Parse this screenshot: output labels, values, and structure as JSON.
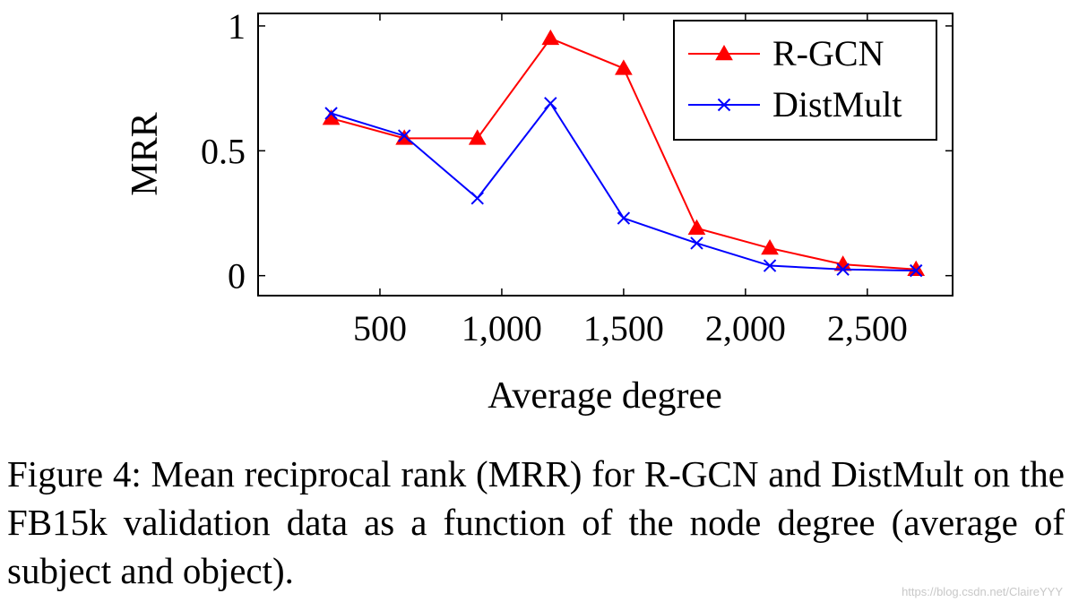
{
  "chart_data": {
    "type": "line",
    "xlabel": "Average degree",
    "ylabel": "MRR",
    "xlim": [
      0,
      2850
    ],
    "ylim": [
      -0.08,
      1.05
    ],
    "x_ticks": [
      {
        "value": 500,
        "label": "500"
      },
      {
        "value": 1000,
        "label": "1,000"
      },
      {
        "value": 1500,
        "label": "1,500"
      },
      {
        "value": 2000,
        "label": "2,000"
      },
      {
        "value": 2500,
        "label": "2,500"
      }
    ],
    "y_ticks": [
      {
        "value": 0,
        "label": "0"
      },
      {
        "value": 0.5,
        "label": "0.5"
      },
      {
        "value": 1,
        "label": "1"
      }
    ],
    "legend_position": "top-right",
    "grid": false,
    "series": [
      {
        "name": "R-GCN",
        "color": "#ff0000",
        "marker": "triangle",
        "points": [
          {
            "x": 300,
            "y": 0.63
          },
          {
            "x": 600,
            "y": 0.55
          },
          {
            "x": 900,
            "y": 0.55
          },
          {
            "x": 1200,
            "y": 0.95
          },
          {
            "x": 1500,
            "y": 0.83
          },
          {
            "x": 1800,
            "y": 0.19
          },
          {
            "x": 2100,
            "y": 0.11
          },
          {
            "x": 2400,
            "y": 0.045
          },
          {
            "x": 2700,
            "y": 0.025
          }
        ]
      },
      {
        "name": "DistMult",
        "color": "#0000ff",
        "marker": "cross",
        "points": [
          {
            "x": 300,
            "y": 0.65
          },
          {
            "x": 600,
            "y": 0.56
          },
          {
            "x": 900,
            "y": 0.31
          },
          {
            "x": 1200,
            "y": 0.69
          },
          {
            "x": 1500,
            "y": 0.23
          },
          {
            "x": 1800,
            "y": 0.13
          },
          {
            "x": 2100,
            "y": 0.04
          },
          {
            "x": 2400,
            "y": 0.025
          },
          {
            "x": 2700,
            "y": 0.02
          }
        ]
      }
    ]
  },
  "caption": "Figure 4: Mean reciprocal rank (MRR) for R-GCN and Dist­Mult on the FB15k validation data as a function of the node degree (average of subject and object).",
  "watermark": "https://blog.csdn.net/ClaireYYY"
}
